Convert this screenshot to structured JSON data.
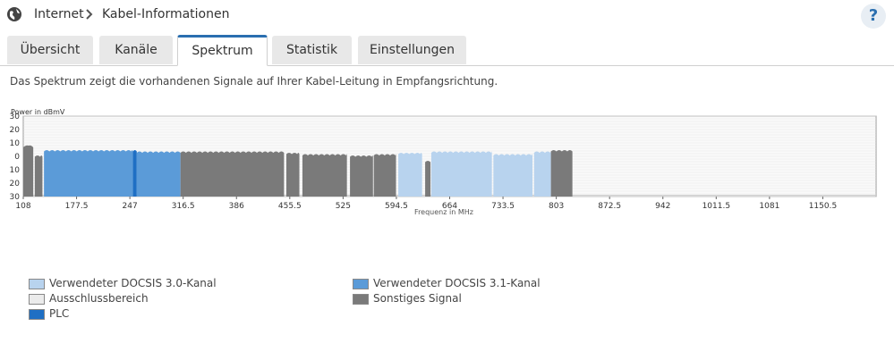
{
  "header": {
    "breadcrumb": [
      "Internet",
      "Kabel-Informationen"
    ],
    "help_label": "?"
  },
  "icons": {
    "globe": "globe-icon",
    "separator": "chevron-right-icon",
    "help": "help-icon"
  },
  "tabs": [
    {
      "label": "Übersicht",
      "active": false
    },
    {
      "label": "Kanäle",
      "active": false
    },
    {
      "label": "Spektrum",
      "active": true
    },
    {
      "label": "Statistik",
      "active": false
    },
    {
      "label": "Einstellungen",
      "active": false
    }
  ],
  "description": "Das Spektrum zeigt die vorhandenen Signale auf Ihrer Kabel-Leitung in Empfangsrichtung.",
  "chart_data": {
    "type": "area",
    "ylabel": "Power in dBmV",
    "xlabel": "Frequenz in MHz",
    "ylim": [
      -30,
      30
    ],
    "yticks": [
      "30",
      "20",
      "10",
      "0",
      "10",
      "20",
      "30"
    ],
    "xlim": [
      108,
      1220
    ],
    "xticks": [
      "108",
      "177.5",
      "247",
      "316.5",
      "386",
      "455.5",
      "525",
      "594.5",
      "664",
      "733.5",
      "803",
      "872.5",
      "942",
      "1011.5",
      "1081",
      "1150.5"
    ],
    "grid": true,
    "segments": [
      {
        "type": "other",
        "from": 108,
        "to": 121,
        "level": 8
      },
      {
        "type": "other",
        "from": 123,
        "to": 133,
        "level": 1
      },
      {
        "type": "docsis31",
        "from": 135,
        "to": 251,
        "level": 5
      },
      {
        "type": "plc",
        "from": 251,
        "to": 256,
        "level": 5
      },
      {
        "type": "docsis31",
        "from": 256,
        "to": 313,
        "level": 4
      },
      {
        "type": "other",
        "from": 313,
        "to": 448,
        "level": 4
      },
      {
        "type": "other",
        "from": 451,
        "to": 468,
        "level": 3
      },
      {
        "type": "other",
        "from": 472,
        "to": 530,
        "level": 2
      },
      {
        "type": "other",
        "from": 534,
        "to": 564,
        "level": 1
      },
      {
        "type": "other",
        "from": 565,
        "to": 594,
        "level": 2
      },
      {
        "type": "docsis30",
        "from": 597,
        "to": 628,
        "level": 3
      },
      {
        "type": "other",
        "from": 632,
        "to": 639,
        "level": -3
      },
      {
        "type": "docsis30",
        "from": 640,
        "to": 719,
        "level": 4
      },
      {
        "type": "docsis30",
        "from": 721,
        "to": 772,
        "level": 2
      },
      {
        "type": "docsis30",
        "from": 774,
        "to": 796,
        "level": 4
      },
      {
        "type": "other",
        "from": 796,
        "to": 824,
        "level": 5
      }
    ],
    "noise_level": -29
  },
  "legend": [
    {
      "label": "Verwendeter DOCSIS 3.0-Kanal",
      "color": "#b8d3ee"
    },
    {
      "label": "Ausschlussbereich",
      "color": "#ebebeb"
    },
    {
      "label": "PLC",
      "color": "#1f6fc4"
    },
    {
      "label": "Verwendeter DOCSIS 3.1-Kanal",
      "color": "#5b9bd8"
    },
    {
      "label": "Sonstiges Signal",
      "color": "#7a7a7a"
    }
  ],
  "colors": {
    "docsis30": "#b8d3ee",
    "docsis31": "#5b9bd8",
    "plc": "#1f6fc4",
    "other": "#7a7a7a",
    "accent": "#2a6fb0"
  }
}
